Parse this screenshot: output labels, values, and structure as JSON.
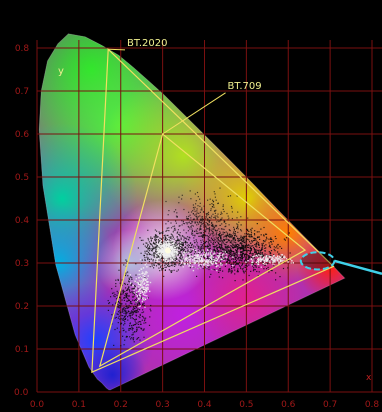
{
  "chart_data": {
    "type": "scatter",
    "title": "",
    "xlabel": "x",
    "ylabel": "y",
    "xlim": [
      0.0,
      0.8
    ],
    "ylim": [
      0.0,
      0.8
    ],
    "x_ticks": [
      "0.0",
      "0.1",
      "0.2",
      "0.3",
      "0.4",
      "0.5",
      "0.6",
      "0.7",
      "0.8"
    ],
    "y_ticks": [
      "0.0",
      "0.1",
      "0.2",
      "0.3",
      "0.4",
      "0.5",
      "0.6",
      "0.7",
      "0.8"
    ],
    "grid": true,
    "colors": {
      "background": "#000000",
      "grid": "#7a1010",
      "tick_text": "#a01818",
      "gamut_lines": "#f0e060",
      "highlight": "#40d0e8"
    },
    "spectral_locus": [
      [
        0.175,
        0.005
      ],
      [
        0.172,
        0.005
      ],
      [
        0.166,
        0.009
      ],
      [
        0.155,
        0.021
      ],
      [
        0.144,
        0.03
      ],
      [
        0.124,
        0.058
      ],
      [
        0.091,
        0.133
      ],
      [
        0.045,
        0.295
      ],
      [
        0.014,
        0.48
      ],
      [
        0.005,
        0.61
      ],
      [
        0.01,
        0.7
      ],
      [
        0.025,
        0.77
      ],
      [
        0.05,
        0.81
      ],
      [
        0.075,
        0.833
      ],
      [
        0.115,
        0.826
      ],
      [
        0.155,
        0.806
      ],
      [
        0.195,
        0.783
      ],
      [
        0.23,
        0.755
      ],
      [
        0.266,
        0.724
      ],
      [
        0.302,
        0.692
      ],
      [
        0.373,
        0.624
      ],
      [
        0.444,
        0.555
      ],
      [
        0.513,
        0.487
      ],
      [
        0.575,
        0.424
      ],
      [
        0.627,
        0.372
      ],
      [
        0.666,
        0.334
      ],
      [
        0.692,
        0.308
      ],
      [
        0.713,
        0.287
      ],
      [
        0.726,
        0.274
      ],
      [
        0.735,
        0.265
      ]
    ],
    "gamuts": [
      {
        "name": "BT.2020",
        "points": [
          [
            0.708,
            0.292
          ],
          [
            0.17,
            0.797
          ],
          [
            0.131,
            0.046
          ]
        ],
        "label_at": [
          0.215,
          0.805
        ]
      },
      {
        "name": "BT.709",
        "points": [
          [
            0.64,
            0.33
          ],
          [
            0.3,
            0.6
          ],
          [
            0.15,
            0.06
          ]
        ],
        "label_at": [
          0.455,
          0.705
        ]
      }
    ],
    "white_point": [
      0.3127,
      0.329
    ],
    "highlight": {
      "center": [
        0.67,
        0.305
      ],
      "rx": 0.04,
      "ry": 0.02,
      "leader_to": [
        0.83,
        0.275
      ]
    }
  }
}
